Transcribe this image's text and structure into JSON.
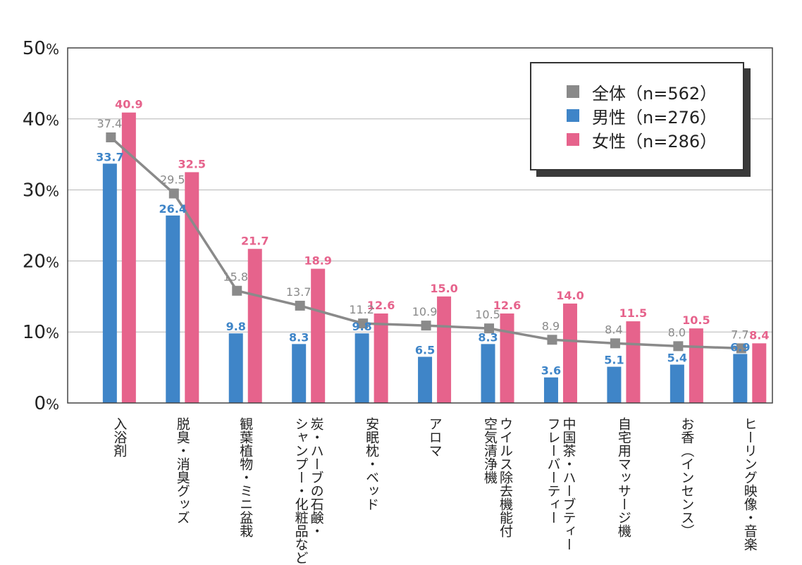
{
  "colors": {
    "total": "#8a8a8a",
    "male": "#3f85c8",
    "female": "#e6638c"
  },
  "legend": {
    "items": [
      {
        "key": "total",
        "label": "全体（n=562）"
      },
      {
        "key": "male",
        "label": "男性（n=276）"
      },
      {
        "key": "female",
        "label": "女性（n=286）"
      }
    ]
  },
  "chart_data": {
    "type": "bar",
    "ylim": [
      0,
      50
    ],
    "yticks": [
      {
        "num": "0",
        "unit": "%"
      },
      {
        "num": "10",
        "unit": "%"
      },
      {
        "num": "20",
        "unit": "%"
      },
      {
        "num": "30",
        "unit": "%"
      },
      {
        "num": "40",
        "unit": "%"
      },
      {
        "num": "50",
        "unit": "%"
      }
    ],
    "grid": true,
    "legend_position": "top-right",
    "categories": [
      [
        "入浴剤"
      ],
      [
        "脱臭・消臭グッズ"
      ],
      [
        "観葉植物・ミニ盆栽"
      ],
      [
        "炭・ハーブの石鹸・",
        "シャンプー・化粧品など"
      ],
      [
        "安眠枕・ベッド"
      ],
      [
        "アロマ"
      ],
      [
        "ウイルス除去機能付",
        "空気清浄機"
      ],
      [
        "中国茶・ハーブティー",
        "フレーバーティー"
      ],
      [
        "自宅用マッサージ機"
      ],
      [
        "お香（インセンス）"
      ],
      [
        "ヒーリング映像・音楽"
      ]
    ],
    "series": [
      {
        "key": "total",
        "name": "全体（n=562）",
        "kind": "line",
        "values": [
          37.4,
          29.5,
          15.8,
          13.7,
          11.2,
          10.9,
          10.5,
          8.9,
          8.4,
          8.0,
          7.7
        ],
        "labels": [
          "37.4",
          "29.5",
          "15.8",
          "13.7",
          "11.2",
          "10.9",
          "10.5",
          "8.9",
          "8.4",
          "8.0",
          "7.7"
        ]
      },
      {
        "key": "male",
        "name": "男性（n=276）",
        "kind": "bar",
        "values": [
          33.7,
          26.4,
          9.8,
          8.3,
          9.8,
          6.5,
          8.3,
          3.6,
          5.1,
          5.4,
          6.9
        ],
        "labels": [
          "33.7",
          "26.4",
          "9.8",
          "8.3",
          "9.8",
          "6.5",
          "8.3",
          "3.6",
          "5.1",
          "5.4",
          "6.9"
        ]
      },
      {
        "key": "female",
        "name": "女性（n=286）",
        "kind": "bar",
        "values": [
          40.9,
          32.5,
          21.7,
          18.9,
          12.6,
          15.0,
          12.6,
          14.0,
          11.5,
          10.5,
          8.4
        ],
        "labels": [
          "40.9",
          "32.5",
          "21.7",
          "18.9",
          "12.6",
          "15.0",
          "12.6",
          "14.0",
          "11.5",
          "10.5",
          "8.4"
        ]
      }
    ]
  }
}
